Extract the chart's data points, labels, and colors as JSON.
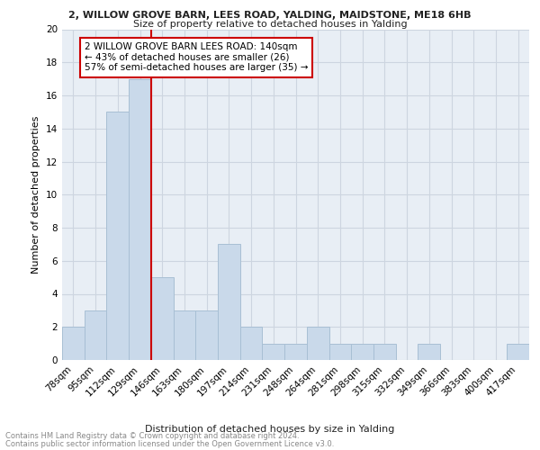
{
  "title1": "2, WILLOW GROVE BARN, LEES ROAD, YALDING, MAIDSTONE, ME18 6HB",
  "title2": "Size of property relative to detached houses in Yalding",
  "xlabel": "Distribution of detached houses by size in Yalding",
  "ylabel": "Number of detached properties",
  "footer1": "Contains HM Land Registry data © Crown copyright and database right 2024.",
  "footer2": "Contains public sector information licensed under the Open Government Licence v3.0.",
  "categories": [
    "78sqm",
    "95sqm",
    "112sqm",
    "129sqm",
    "146sqm",
    "163sqm",
    "180sqm",
    "197sqm",
    "214sqm",
    "231sqm",
    "248sqm",
    "264sqm",
    "281sqm",
    "298sqm",
    "315sqm",
    "332sqm",
    "349sqm",
    "366sqm",
    "383sqm",
    "400sqm",
    "417sqm"
  ],
  "values": [
    2,
    3,
    15,
    17,
    5,
    3,
    3,
    7,
    2,
    1,
    1,
    2,
    1,
    1,
    1,
    0,
    1,
    0,
    0,
    0,
    1
  ],
  "bar_color": "#c9d9ea",
  "bar_edge_color": "#a8bfd4",
  "ref_line_color": "#cc0000",
  "annotation_text": "2 WILLOW GROVE BARN LEES ROAD: 140sqm\n← 43% of detached houses are smaller (26)\n57% of semi-detached houses are larger (35) →",
  "annotation_box_color": "#ffffff",
  "annotation_box_edge": "#cc0000",
  "ylim": [
    0,
    20
  ],
  "yticks": [
    0,
    2,
    4,
    6,
    8,
    10,
    12,
    14,
    16,
    18,
    20
  ],
  "grid_color": "#cdd5e0",
  "bg_color": "#e8eef5",
  "title1_fontsize": 8.0,
  "title2_fontsize": 8.0,
  "ylabel_fontsize": 8.0,
  "xlabel_fontsize": 8.0,
  "tick_fontsize": 7.5,
  "footer_fontsize": 6.0,
  "annot_fontsize": 7.5
}
